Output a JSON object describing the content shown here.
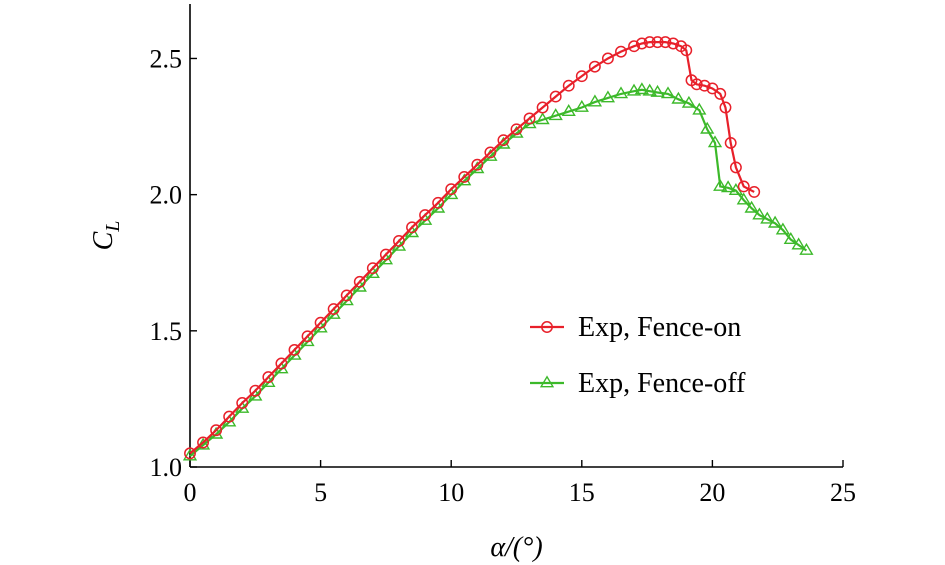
{
  "chart_data": {
    "type": "line",
    "title": "",
    "xlabel": "α/(°)",
    "ylabel": "C",
    "ylabel_subscript": "L",
    "xlim": [
      0,
      25
    ],
    "ylim": [
      1.0,
      2.7
    ],
    "xticks": [
      0,
      5,
      10,
      15,
      20,
      25
    ],
    "xtick_labels": [
      "0",
      "5",
      "10",
      "15",
      "20",
      "25"
    ],
    "yticks": [
      1.0,
      1.5,
      2.0,
      2.5
    ],
    "ytick_labels": [
      "1.0",
      "1.5",
      "2.0",
      "2.5"
    ],
    "grid": false,
    "legend_position": "center-right",
    "series": [
      {
        "name": "Exp, Fence-on",
        "color": "#e8202a",
        "marker": "circle",
        "x": [
          0.0,
          0.5,
          1.0,
          1.5,
          2.0,
          2.5,
          3.0,
          3.5,
          4.0,
          4.5,
          5.0,
          5.5,
          6.0,
          6.5,
          7.0,
          7.5,
          8.0,
          8.5,
          9.0,
          9.5,
          10.0,
          10.5,
          11.0,
          11.5,
          12.0,
          12.5,
          13.0,
          13.5,
          14.0,
          14.5,
          15.0,
          15.5,
          16.0,
          16.5,
          17.0,
          17.3,
          17.6,
          17.9,
          18.2,
          18.5,
          18.8,
          19.0,
          19.2,
          19.4,
          19.7,
          20.0,
          20.3,
          20.5,
          20.7,
          20.9,
          21.2,
          21.6
        ],
        "y": [
          1.05,
          1.09,
          1.135,
          1.185,
          1.235,
          1.28,
          1.33,
          1.38,
          1.43,
          1.48,
          1.53,
          1.58,
          1.63,
          1.68,
          1.73,
          1.78,
          1.83,
          1.88,
          1.925,
          1.97,
          2.02,
          2.065,
          2.11,
          2.155,
          2.2,
          2.24,
          2.28,
          2.32,
          2.36,
          2.4,
          2.435,
          2.47,
          2.5,
          2.525,
          2.545,
          2.555,
          2.56,
          2.56,
          2.56,
          2.555,
          2.545,
          2.53,
          2.42,
          2.405,
          2.4,
          2.39,
          2.37,
          2.32,
          2.19,
          2.1,
          2.03,
          2.01
        ]
      },
      {
        "name": "Exp, Fence-off",
        "color": "#3cb92a",
        "marker": "triangle",
        "x": [
          0.0,
          0.5,
          1.0,
          1.5,
          2.0,
          2.5,
          3.0,
          3.5,
          4.0,
          4.5,
          5.0,
          5.5,
          6.0,
          6.5,
          7.0,
          7.5,
          8.0,
          8.5,
          9.0,
          9.5,
          10.0,
          10.5,
          11.0,
          11.5,
          12.0,
          12.5,
          13.0,
          13.5,
          14.0,
          14.5,
          15.0,
          15.5,
          16.0,
          16.5,
          17.0,
          17.3,
          17.6,
          17.9,
          18.3,
          18.7,
          19.1,
          19.5,
          19.8,
          20.1,
          20.3,
          20.6,
          20.9,
          21.2,
          21.5,
          21.8,
          22.1,
          22.4,
          22.7,
          23.0,
          23.3,
          23.6
        ],
        "y": [
          1.04,
          1.08,
          1.12,
          1.165,
          1.215,
          1.26,
          1.31,
          1.36,
          1.41,
          1.46,
          1.51,
          1.56,
          1.61,
          1.66,
          1.71,
          1.76,
          1.81,
          1.86,
          1.905,
          1.95,
          2.0,
          2.05,
          2.095,
          2.14,
          2.185,
          2.225,
          2.26,
          2.275,
          2.29,
          2.305,
          2.32,
          2.34,
          2.355,
          2.37,
          2.38,
          2.385,
          2.38,
          2.375,
          2.37,
          2.35,
          2.335,
          2.31,
          2.24,
          2.19,
          2.03,
          2.025,
          2.015,
          1.98,
          1.95,
          1.925,
          1.91,
          1.895,
          1.87,
          1.835,
          1.815,
          1.795
        ]
      }
    ]
  }
}
